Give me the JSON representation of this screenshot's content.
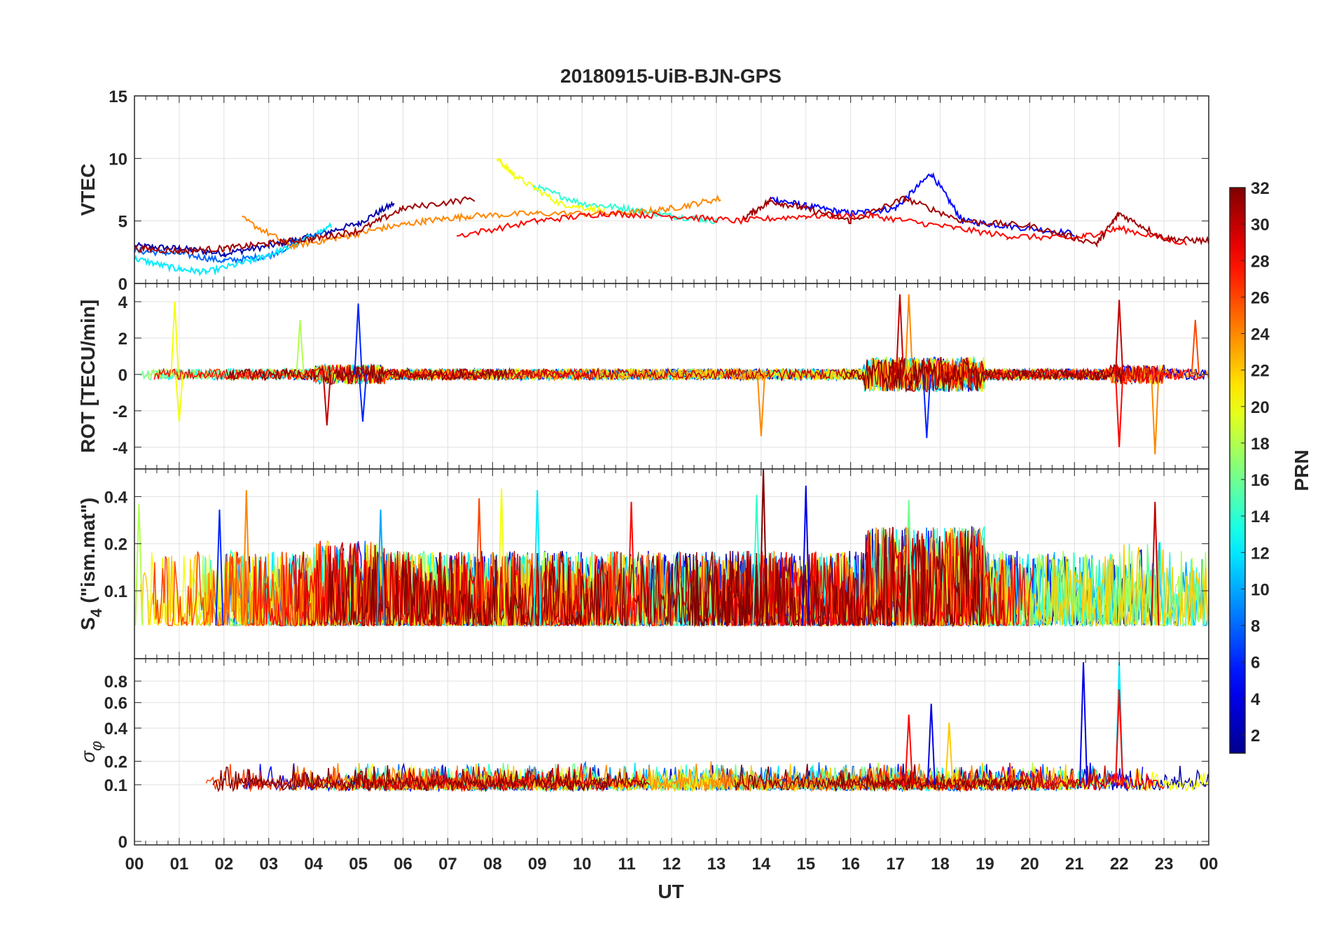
{
  "title": "20180915-UiB-BJN-GPS",
  "xlabel": "UT",
  "x_ticks": [
    "00",
    "01",
    "02",
    "03",
    "04",
    "05",
    "06",
    "07",
    "08",
    "09",
    "10",
    "11",
    "12",
    "13",
    "14",
    "15",
    "16",
    "17",
    "18",
    "19",
    "20",
    "21",
    "22",
    "23",
    "00"
  ],
  "colorbar": {
    "label": "PRN",
    "range": [
      1,
      32
    ],
    "ticks": [
      "2",
      "4",
      "6",
      "8",
      "10",
      "12",
      "14",
      "16",
      "18",
      "20",
      "22",
      "24",
      "26",
      "28",
      "30",
      "32"
    ],
    "colormap": "jet",
    "stops": [
      "#00008f",
      "#0000ff",
      "#00ffff",
      "#ffff00",
      "#ff0000",
      "#800000"
    ]
  },
  "chart_data": [
    {
      "type": "line",
      "panel": "VTEC",
      "ylabel": "VTEC",
      "ylim": [
        0,
        15
      ],
      "yticks": [
        "0",
        "5",
        "10",
        "15"
      ],
      "grid": true,
      "x_range_hours": [
        0,
        24
      ],
      "series": [
        {
          "prn": 2,
          "x": [
            0,
            1,
            2,
            3,
            4,
            5,
            5.8
          ],
          "values": [
            3.0,
            2.8,
            2.4,
            3.0,
            3.8,
            4.8,
            6.4
          ]
        },
        {
          "prn": 5,
          "x": [
            14.2,
            15,
            16,
            17,
            17.8,
            18.5,
            19.5,
            21
          ],
          "values": [
            6.8,
            6.2,
            5.6,
            6.0,
            8.8,
            5.0,
            4.6,
            4.0
          ]
        },
        {
          "prn": 8,
          "x": [
            0,
            1,
            2,
            3,
            4.2
          ],
          "values": [
            2.6,
            2.4,
            1.8,
            2.2,
            4.2
          ]
        },
        {
          "prn": 12,
          "x": [
            0,
            0.9,
            1.6,
            2.6,
            3.4,
            4.4
          ],
          "values": [
            2.0,
            1.2,
            0.9,
            1.8,
            2.8,
            4.6
          ]
        },
        {
          "prn": 14,
          "x": [
            8.9,
            10,
            11,
            12,
            13
          ],
          "values": [
            7.8,
            6.4,
            6.0,
            5.4,
            5.0
          ]
        },
        {
          "prn": 20,
          "x": [
            8.1,
            8.5,
            9.5,
            10.5
          ],
          "values": [
            10.0,
            8.6,
            6.4,
            5.8
          ]
        },
        {
          "prn": 24,
          "x": [
            2.4,
            3.5,
            4.5,
            5.5,
            6.5,
            7.5,
            9,
            11,
            12,
            13.1
          ],
          "values": [
            5.2,
            3.0,
            3.6,
            4.4,
            5.0,
            5.4,
            5.6,
            5.6,
            6.0,
            6.8
          ]
        },
        {
          "prn": 28,
          "x": [
            7.2,
            9,
            10.5,
            12,
            13.5,
            15,
            16.5,
            18,
            19.5,
            21,
            22,
            23.5
          ],
          "values": [
            3.8,
            5.0,
            5.6,
            5.4,
            5.0,
            5.4,
            5.4,
            4.6,
            3.8,
            3.6,
            4.4,
            3.2
          ]
        },
        {
          "prn": 31,
          "x": [
            0,
            1,
            2,
            3,
            4,
            5,
            6,
            7.6
          ],
          "values": [
            2.8,
            2.6,
            2.8,
            3.2,
            3.6,
            4.2,
            6.0,
            6.8
          ]
        },
        {
          "prn": 31,
          "x": [
            13.6,
            14.2,
            15,
            16,
            17.2,
            18.5,
            20,
            21.5,
            22,
            23,
            24
          ],
          "values": [
            5.2,
            6.6,
            6.0,
            5.0,
            6.8,
            5.0,
            4.6,
            3.2,
            5.6,
            3.6,
            3.4
          ]
        }
      ]
    },
    {
      "type": "line",
      "panel": "ROT",
      "ylabel": "ROT [TECU/min]",
      "ylim": [
        -5.2,
        5
      ],
      "yticks": [
        "-4",
        "-2",
        "0",
        "2",
        "4"
      ],
      "grid": true,
      "notes": "Noisy around 0 for all PRNs; large excursions 04-05, 17-18, 22-23 UT",
      "spikes": [
        {
          "prn": 20,
          "x": 0.9,
          "value": 4.0
        },
        {
          "prn": 20,
          "x": 1.0,
          "value": -2.6
        },
        {
          "prn": 18,
          "x": 3.7,
          "value": 3.0
        },
        {
          "prn": 30,
          "x": 4.3,
          "value": -2.8
        },
        {
          "prn": 6,
          "x": 5.0,
          "value": 3.9
        },
        {
          "prn": 6,
          "x": 5.1,
          "value": -2.6
        },
        {
          "prn": 24,
          "x": 14.0,
          "value": -3.4
        },
        {
          "prn": 30,
          "x": 17.1,
          "value": 4.4
        },
        {
          "prn": 24,
          "x": 17.3,
          "value": 4.4
        },
        {
          "prn": 6,
          "x": 17.7,
          "value": -3.5
        },
        {
          "prn": 30,
          "x": 22.0,
          "value": 4.1
        },
        {
          "prn": 28,
          "x": 22.0,
          "value": -4.0
        },
        {
          "prn": 24,
          "x": 22.8,
          "value": -4.4
        },
        {
          "prn": 26,
          "x": 23.7,
          "value": 3.0
        }
      ]
    },
    {
      "type": "line",
      "panel": "S4",
      "ylabel": "S4 (\"ism.mat\")",
      "ylabel_main": "S",
      "ylabel_sub": "4",
      "ylabel_rest": " (\"ism.mat\")",
      "ylim": [
        0.04,
        0.6
      ],
      "yticks": [
        "0.1",
        "0.2",
        "0.4"
      ],
      "grid": true,
      "baseline": 0.06,
      "peaks": [
        {
          "prn": 18,
          "x": 0.1,
          "value": 0.36
        },
        {
          "prn": 6,
          "x": 1.9,
          "value": 0.33
        },
        {
          "prn": 24,
          "x": 2.5,
          "value": 0.44
        },
        {
          "prn": 10,
          "x": 5.5,
          "value": 0.33
        },
        {
          "prn": 26,
          "x": 7.7,
          "value": 0.39
        },
        {
          "prn": 20,
          "x": 8.2,
          "value": 0.45
        },
        {
          "prn": 12,
          "x": 9.0,
          "value": 0.44
        },
        {
          "prn": 28,
          "x": 11.1,
          "value": 0.37
        },
        {
          "prn": 14,
          "x": 13.9,
          "value": 0.41
        },
        {
          "prn": 32,
          "x": 14.05,
          "value": 0.6
        },
        {
          "prn": 4,
          "x": 15.0,
          "value": 0.47
        },
        {
          "prn": 16,
          "x": 17.3,
          "value": 0.38
        },
        {
          "prn": 30,
          "x": 22.8,
          "value": 0.37
        }
      ]
    },
    {
      "type": "line",
      "panel": "sigma_phi",
      "ylabel": "σ φ",
      "ylabel_main": "σ",
      "ylabel_sub": "φ",
      "ylim": [
        0,
        1
      ],
      "yticks": [
        "0",
        "0.1",
        "0.2",
        "0.4",
        "0.6",
        "0.8"
      ],
      "grid": true,
      "baseline": 0.1,
      "peaks": [
        {
          "prn": 28,
          "x": 17.3,
          "value": 0.5
        },
        {
          "prn": 4,
          "x": 17.8,
          "value": 0.59
        },
        {
          "prn": 22,
          "x": 18.2,
          "value": 0.44
        },
        {
          "prn": 4,
          "x": 21.2,
          "value": 1.0
        },
        {
          "prn": 12,
          "x": 22.0,
          "value": 1.0
        },
        {
          "prn": 28,
          "x": 22.0,
          "value": 0.72
        }
      ]
    }
  ]
}
